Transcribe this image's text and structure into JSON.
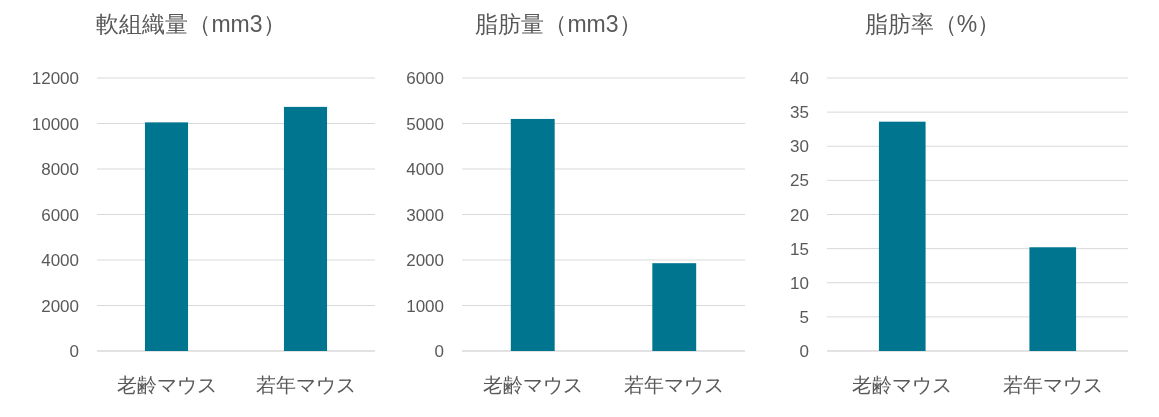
{
  "chart_data": [
    {
      "type": "bar",
      "title": "軟組織量（mm3）",
      "categories": [
        "老齢マウス",
        "若年マウス"
      ],
      "values": [
        10050,
        10730
      ],
      "color": "#00758f",
      "ylim": [
        0,
        12000
      ],
      "yticks": [
        0,
        2000,
        4000,
        6000,
        8000,
        10000,
        12000
      ],
      "grid": "y"
    },
    {
      "type": "bar",
      "title": "脂肪量（mm3）",
      "categories": [
        "老齢マウス",
        "若年マウス"
      ],
      "values": [
        5100,
        1930
      ],
      "color": "#00758f",
      "ylim": [
        0,
        6000
      ],
      "yticks": [
        0,
        1000,
        2000,
        3000,
        4000,
        5000,
        6000
      ],
      "grid": "y"
    },
    {
      "type": "bar",
      "title": "脂肪率（%）",
      "categories": [
        "老齢マウス",
        "若年マウス"
      ],
      "values": [
        33.6,
        15.2
      ],
      "color": "#00758f",
      "ylim": [
        0,
        40
      ],
      "yticks": [
        0,
        5,
        10,
        15,
        20,
        25,
        30,
        35,
        40
      ],
      "grid": "y"
    }
  ]
}
